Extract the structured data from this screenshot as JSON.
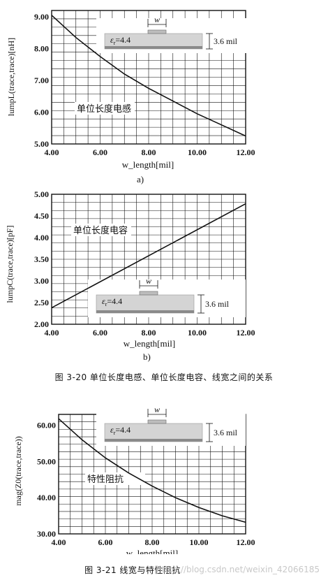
{
  "chart_data": [
    {
      "type": "line",
      "id": "a",
      "xlabel": "w_length[mil]",
      "ylabel": "lumpL(trace,trace)[nH]",
      "xlim": [
        4,
        12
      ],
      "ylim": [
        5,
        9.2
      ],
      "xticks": [
        "4.00",
        "6.00",
        "8.00",
        "10.00",
        "12.00"
      ],
      "yticks": [
        "5.00",
        "6.00",
        "7.00",
        "8.00",
        "9.00"
      ],
      "yticks_values": [
        5,
        6,
        7,
        8,
        9
      ],
      "series": [
        {
          "x": [
            4,
            5,
            6,
            7,
            8,
            9,
            10,
            11,
            12
          ],
          "y": [
            9.05,
            8.35,
            7.75,
            7.2,
            6.75,
            6.35,
            5.95,
            5.6,
            5.25
          ]
        }
      ],
      "annotation_cn": "单位长度电感",
      "inset": {
        "w": "w",
        "eps": "=4.4",
        "eps_symbol": "ε",
        "eps_sub": "r",
        "height": "3.6 mil"
      },
      "grid": true
    },
    {
      "type": "line",
      "id": "b",
      "xlabel": "w_length[mil]",
      "ylabel": "lumpC(trace,trace)[pF]",
      "xlim": [
        4,
        12
      ],
      "ylim": [
        2,
        5
      ],
      "xticks": [
        "4.00",
        "6.00",
        "8.00",
        "10.00",
        "12.00"
      ],
      "yticks": [
        "2.00",
        "2.50",
        "3.00",
        "3.50",
        "4.00",
        "4.50",
        "5.00"
      ],
      "yticks_values": [
        2,
        2.5,
        3,
        3.5,
        4,
        4.5,
        5
      ],
      "series": [
        {
          "x": [
            4,
            12
          ],
          "y": [
            2.38,
            4.78
          ]
        }
      ],
      "annotation_cn": "单位长度电容",
      "inset": {
        "w": "w",
        "eps": "=4.4",
        "eps_symbol": "ε",
        "eps_sub": "r",
        "height": "3.6 mil"
      },
      "grid": true
    },
    {
      "type": "line",
      "id": "c",
      "xlabel": "w_length[mil]",
      "ylabel": "mag(Z0(trace,trace))",
      "xlim": [
        4,
        12
      ],
      "ylim": [
        30,
        63
      ],
      "xticks": [
        "4.00",
        "6.00",
        "8.00",
        "10.00",
        "12.00"
      ],
      "yticks": [
        "30.00",
        "40.00",
        "50.00",
        "60.00"
      ],
      "yticks_values": [
        30,
        40,
        50,
        60
      ],
      "series": [
        {
          "x": [
            4,
            5,
            6,
            7,
            8,
            9,
            10,
            11,
            12
          ],
          "y": [
            61.8,
            56.0,
            51.0,
            46.8,
            43.2,
            40.0,
            37.3,
            35.0,
            33.2
          ]
        }
      ],
      "annotation_cn": "特性阻抗",
      "inset": {
        "w": "w",
        "eps": "=4.4",
        "eps_symbol": "ε",
        "eps_sub": "r",
        "height": "3.6 mil"
      },
      "grid": true
    }
  ],
  "labels": {
    "a": "a)",
    "b": "b)"
  },
  "captions": {
    "fig_3_20": "图 3-20  单位长度电感、单位长度电容、线宽之间的关系",
    "fig_3_21": "图 3-21  线宽与特性阻抗"
  },
  "watermark": "https://blog.csdn.net/weixin_42066185"
}
